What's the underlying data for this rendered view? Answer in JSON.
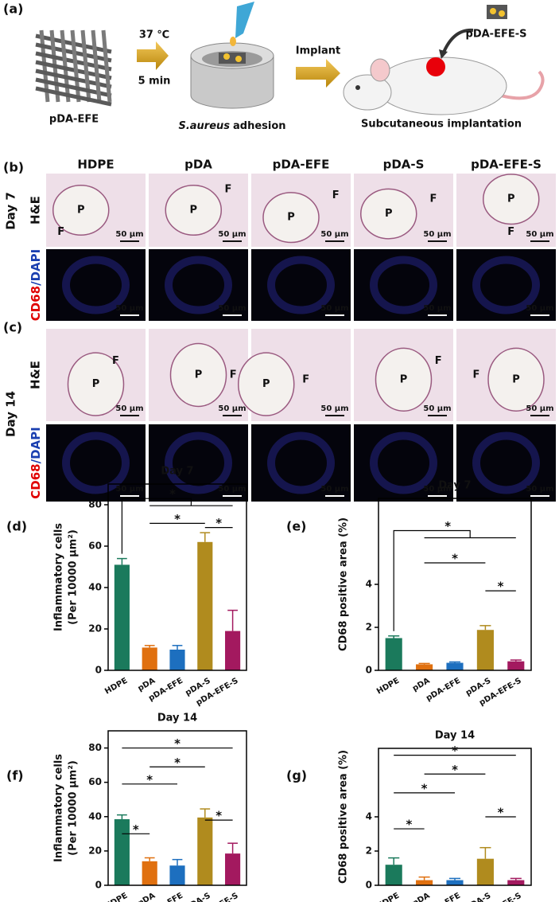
{
  "panel_labels": [
    "(a)",
    "(b)",
    "(c)",
    "(d)",
    "(e)",
    "(f)",
    "(g)"
  ],
  "schematic": {
    "scaffold": "pDA-EFE",
    "temperature": "37 ℃",
    "duration": "5 min",
    "bacteria": "S.aureus",
    "adhesion": "adhesion",
    "implant_arrow": "Implant",
    "implant": "pDA-EFE-S",
    "implantation": "Subcutaneous implantation"
  },
  "micrographs": {
    "groups": [
      "HDPE",
      "pDA",
      "pDA-EFE",
      "pDA-S",
      "pDA-EFE-S"
    ],
    "days": [
      "Day 7",
      "Day 14"
    ],
    "stain_he": "H&E",
    "stain_if": [
      "CD68",
      "/DAPI"
    ],
    "pore": "P",
    "fibrous": "F",
    "scale_bar": "50 μm"
  },
  "chart_data": [
    {
      "type": "bar",
      "title": "Day 7",
      "ylabel": [
        "Inflammatory cells",
        "(Per 10000 μm²)"
      ],
      "categories": [
        "HDPE",
        "pDA",
        "pDA-EFE",
        "pDA-S",
        "pDA-EFE-S"
      ],
      "values": [
        51,
        11,
        10,
        62,
        19
      ],
      "errors": [
        3,
        1,
        2,
        4.5,
        10
      ],
      "colors": [
        "#1b7a5c",
        "#e0700f",
        "#1d6fbf",
        "#b08b1e",
        "#a3195f"
      ],
      "ylim": [
        0,
        90
      ],
      "yticks": [
        0,
        20,
        40,
        60,
        80
      ],
      "annotations": [
        "*",
        "*",
        "*"
      ]
    },
    {
      "type": "bar",
      "title": "Day 7",
      "ylabel": [
        "CD68 positive area (%)"
      ],
      "categories": [
        "HDPE",
        "pDA",
        "pDA-EFE",
        "pDA-S",
        "pDA-EFE-S"
      ],
      "values": [
        1.5,
        0.28,
        0.35,
        1.88,
        0.42
      ],
      "errors": [
        0.1,
        0.04,
        0.04,
        0.2,
        0.06
      ],
      "colors": [
        "#1b7a5c",
        "#e0700f",
        "#1d6fbf",
        "#b08b1e",
        "#a3195f"
      ],
      "ylim": [
        0,
        8
      ],
      "yticks": [
        0,
        2,
        4
      ],
      "annotations": [
        "*",
        "*",
        "*"
      ]
    },
    {
      "type": "bar",
      "title": "Day 14",
      "ylabel": [
        "Inflammatory cells",
        "(Per 10000 μm²)"
      ],
      "categories": [
        "HDPE",
        "pDA",
        "pDA-EFE",
        "pDA-S",
        "pDA-EFE-S"
      ],
      "values": [
        38.5,
        14,
        11.5,
        39.5,
        18.5
      ],
      "errors": [
        2.5,
        2,
        3.5,
        5,
        6
      ],
      "colors": [
        "#1b7a5c",
        "#e0700f",
        "#1d6fbf",
        "#b08b1e",
        "#a3195f"
      ],
      "ylim": [
        0,
        90
      ],
      "yticks": [
        0,
        20,
        40,
        60,
        80
      ],
      "annotations": [
        "*",
        "*",
        "*",
        "*",
        "*"
      ]
    },
    {
      "type": "bar",
      "title": "Day 14",
      "ylabel": [
        "CD68 positive area (%)"
      ],
      "categories": [
        "HDPE",
        "pDA",
        "pDA-EFE",
        "pDA-S",
        "pDA-EFE-S"
      ],
      "values": [
        1.2,
        0.3,
        0.3,
        1.55,
        0.3
      ],
      "errors": [
        0.4,
        0.18,
        0.1,
        0.65,
        0.1
      ],
      "colors": [
        "#1b7a5c",
        "#e0700f",
        "#1d6fbf",
        "#b08b1e",
        "#a3195f"
      ],
      "ylim": [
        0,
        8
      ],
      "yticks": [
        0,
        2,
        4
      ],
      "annotations": [
        "*",
        "*",
        "*",
        "*",
        "*"
      ]
    }
  ]
}
